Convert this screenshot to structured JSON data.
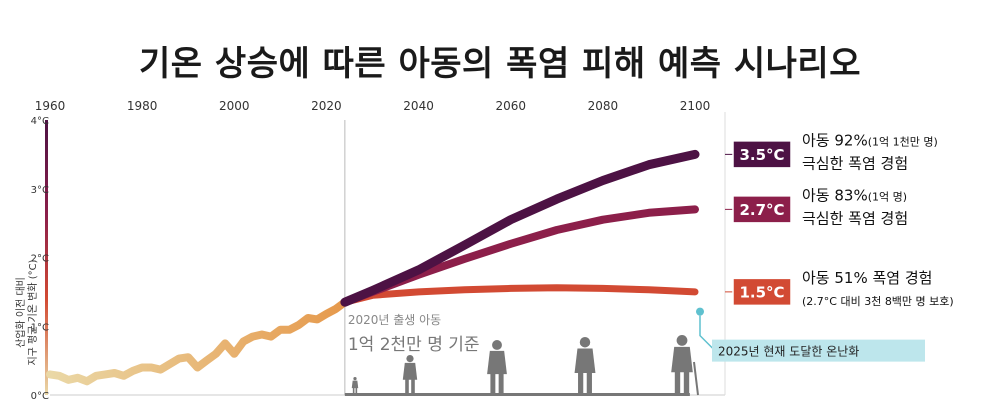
{
  "title": "기온 상승에 따른 아동의 폭염 피해 예측 시나리오",
  "colors": {
    "s35": "#4d1244",
    "s27": "#8c1f4a",
    "s15": "#d24a33",
    "history_start": "#ead8a6",
    "history_end": "#e6994c",
    "current_marker": "#5fc1cf",
    "divider": "#bbbbbb",
    "silhouettes": "#777777"
  },
  "icons": [
    "baby-icon",
    "child-icon",
    "teen-icon",
    "adult-woman-icon",
    "elderly-with-cane-icon"
  ],
  "annotations": {
    "cohort_line1": "2020년 출생 아동",
    "cohort_line2": "1억 2천만 명 기준",
    "current_warming": "2025년 현재 도달한 온난화"
  },
  "scenarios": [
    {
      "badge": "3.5°C",
      "line1_main": "아동 92%",
      "line1_small": "(1억 1천만 명)",
      "line2": "극심한 폭염 경험",
      "note": ""
    },
    {
      "badge": "2.7°C",
      "line1_main": "아동 83%",
      "line1_small": "(1억 명)",
      "line2": "극심한 폭염 경험",
      "note": ""
    },
    {
      "badge": "1.5°C",
      "line1_main": "아동 51% 폭염 경험",
      "line1_small": "",
      "line2": "",
      "note": "(2.7°C 대비 3천 8백만 명 보호)"
    }
  ],
  "chart_data": {
    "type": "line",
    "title": "기온 상승에 따른 아동의 폭염 피해 예측 시나리오",
    "ylabel": [
      "산업화 이전 대비",
      "지구 평균 기온 변화 (°C)"
    ],
    "xlim": [
      1960,
      2100
    ],
    "ylim": [
      0,
      4
    ],
    "x_ticks": [
      "1960",
      "1980",
      "2000",
      "2020",
      "2040",
      "2060",
      "2080",
      "2100"
    ],
    "y_ticks": [
      "0°C",
      "1°C",
      "2°C",
      "3°C",
      "4°C"
    ],
    "grid": false,
    "series": [
      {
        "name": "historical",
        "x": [
          1960,
          1962,
          1964,
          1966,
          1968,
          1970,
          1972,
          1974,
          1976,
          1978,
          1980,
          1982,
          1984,
          1986,
          1988,
          1990,
          1992,
          1994,
          1996,
          1998,
          2000,
          2002,
          2004,
          2006,
          2008,
          2010,
          2012,
          2014,
          2016,
          2018,
          2020,
          2022,
          2024
        ],
        "y": [
          0.3,
          0.28,
          0.22,
          0.25,
          0.2,
          0.28,
          0.3,
          0.32,
          0.28,
          0.35,
          0.4,
          0.4,
          0.37,
          0.45,
          0.53,
          0.55,
          0.4,
          0.5,
          0.6,
          0.75,
          0.6,
          0.78,
          0.85,
          0.88,
          0.85,
          0.95,
          0.95,
          1.02,
          1.12,
          1.1,
          1.18,
          1.25,
          1.35
        ]
      },
      {
        "name": "3.5°C",
        "x": [
          2024,
          2030,
          2040,
          2050,
          2060,
          2070,
          2080,
          2090,
          2100
        ],
        "y": [
          1.35,
          1.52,
          1.82,
          2.18,
          2.55,
          2.85,
          3.12,
          3.35,
          3.5
        ]
      },
      {
        "name": "2.7°C",
        "x": [
          2024,
          2030,
          2040,
          2050,
          2060,
          2070,
          2080,
          2090,
          2100
        ],
        "y": [
          1.35,
          1.5,
          1.75,
          1.98,
          2.2,
          2.4,
          2.55,
          2.65,
          2.7
        ]
      },
      {
        "name": "1.5°C",
        "x": [
          2024,
          2030,
          2040,
          2050,
          2060,
          2070,
          2080,
          2090,
          2100
        ],
        "y": [
          1.35,
          1.45,
          1.5,
          1.53,
          1.55,
          1.56,
          1.55,
          1.53,
          1.5
        ]
      }
    ],
    "current_warming": {
      "x": 2100,
      "y": 1.3
    }
  }
}
